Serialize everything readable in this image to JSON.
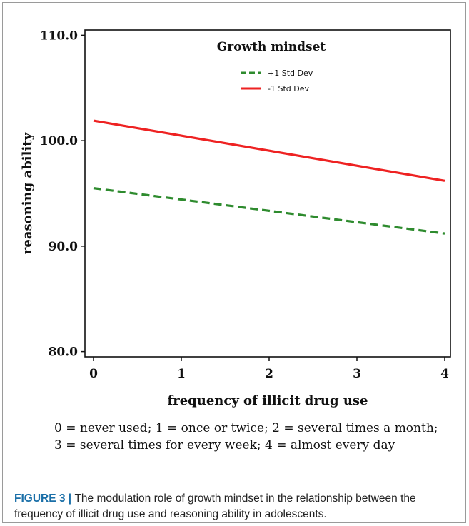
{
  "chart_data": {
    "type": "line",
    "legend_title": "Growth  mindset",
    "xlabel": "frequency of illicit drug use",
    "ylabel": "reasoning ability",
    "xlim": [
      0,
      4
    ],
    "ylim": [
      79.5,
      110.5
    ],
    "x_ticks": [
      "0",
      "1",
      "2",
      "3",
      "4"
    ],
    "y_ticks": [
      "80.0",
      "90.0",
      "100.0",
      "110.0"
    ],
    "y_tick_values": [
      80,
      90,
      100,
      110
    ],
    "legend_position": "top-right",
    "series": [
      {
        "name": "+1 Std Dev",
        "color": "#2e8b2e",
        "style": "dashed",
        "x": [
          0,
          4
        ],
        "y": [
          95.5,
          91.2
        ]
      },
      {
        "name": "-1 Std Dev",
        "color": "#ee2222",
        "style": "solid",
        "x": [
          0,
          4
        ],
        "y": [
          101.9,
          96.2
        ]
      }
    ]
  },
  "note": {
    "line1": "0 = never used; 1 = once or twice; 2 = several times a month;",
    "line2": "3 = several times for every week; 4 = almost every day"
  },
  "caption": {
    "label": "FIGURE 3",
    "separator": " | ",
    "text": "The modulation role of growth mindset in the relationship between the frequency of illicit drug use and reasoning ability in adolescents."
  }
}
